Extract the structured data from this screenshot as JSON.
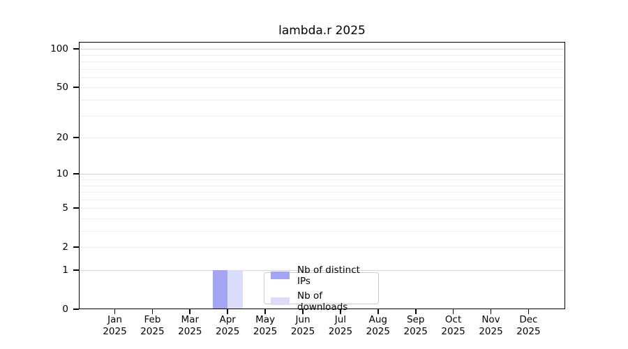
{
  "chart_data": {
    "type": "bar",
    "title": "lambda.r 2025",
    "x": [
      "Jan 2025",
      "Feb 2025",
      "Mar 2025",
      "Apr 2025",
      "May 2025",
      "Jun 2025",
      "Jul 2025",
      "Aug 2025",
      "Sep 2025",
      "Oct 2025",
      "Nov 2025",
      "Dec 2025"
    ],
    "series": [
      {
        "name": "Nb of distinct IPs",
        "color": "#a4a4f4",
        "values": [
          0,
          0,
          0,
          1,
          0,
          0,
          0,
          0,
          0,
          0,
          0,
          0
        ]
      },
      {
        "name": "Nb of downloads",
        "color": "#dbdbfa",
        "values": [
          0,
          0,
          0,
          1,
          0,
          0,
          0,
          0,
          0,
          0,
          0,
          0
        ]
      }
    ],
    "y_axis": {
      "scale": "log1p",
      "ticks": [
        0,
        1,
        2,
        5,
        10,
        20,
        50,
        100
      ],
      "max": 113.5
    },
    "grid": {
      "horizontal": true,
      "major_color": "#d6d6d6",
      "minor_color": "#efefef"
    },
    "legend": {
      "position": "inside-bottom-center",
      "border_color": "#cccccc"
    }
  }
}
